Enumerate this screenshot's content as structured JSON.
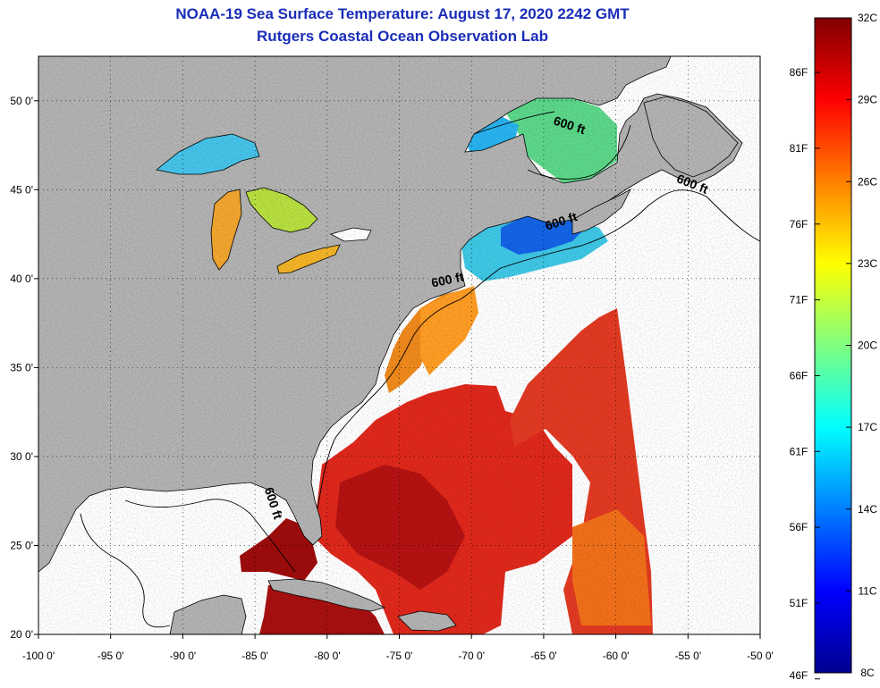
{
  "title": {
    "line1": "NOAA-19 Sea Surface Temperature:  August 17, 2020 2242 GMT",
    "line2": "Rutgers Coastal Ocean Observation Lab"
  },
  "map": {
    "lon_range": [
      -100,
      -50
    ],
    "lat_range": [
      20,
      52.5
    ],
    "x_ticks": [
      {
        "value": -100,
        "label": "-100 0'"
      },
      {
        "value": -95,
        "label": "-95 0'"
      },
      {
        "value": -90,
        "label": "-90 0'"
      },
      {
        "value": -85,
        "label": "-85 0'"
      },
      {
        "value": -80,
        "label": "-80 0'"
      },
      {
        "value": -75,
        "label": "-75 0'"
      },
      {
        "value": -70,
        "label": "-70 0'"
      },
      {
        "value": -65,
        "label": "-65 0'"
      },
      {
        "value": -60,
        "label": "-60 0'"
      },
      {
        "value": -55,
        "label": "-55 0'"
      },
      {
        "value": -50,
        "label": "-50 0'"
      }
    ],
    "y_ticks": [
      {
        "value": 20,
        "label": "20 0'"
      },
      {
        "value": 25,
        "label": "25 0'"
      },
      {
        "value": 30,
        "label": "30 0'"
      },
      {
        "value": 35,
        "label": "35 0'"
      },
      {
        "value": 40,
        "label": "40 0'"
      },
      {
        "value": 45,
        "label": "45 0'"
      },
      {
        "value": 50,
        "label": "50 0'"
      }
    ],
    "contour_labels": [
      {
        "text": "600 ft",
        "lon": -63.3,
        "lat": 48.4,
        "angle": 18
      },
      {
        "text": "600 ft",
        "lon": -54.8,
        "lat": 45.1,
        "angle": 22
      },
      {
        "text": "600 ft",
        "lon": -63.7,
        "lat": 43.0,
        "angle": -18
      },
      {
        "text": "600 ft",
        "lon": -71.6,
        "lat": 39.7,
        "angle": -12
      },
      {
        "text": "600 ft",
        "lon": -84.0,
        "lat": 27.3,
        "angle": 72
      }
    ],
    "land_color": "#b3b3b3",
    "nodata_color": "#ffffff"
  },
  "colorbar": {
    "celsius_labels": [
      "32C",
      "29C",
      "26C",
      "23C",
      "20C",
      "17C",
      "14C",
      "11C",
      "8C"
    ],
    "fahrenheit_labels": [
      "86F",
      "81F",
      "76F",
      "71F",
      "66F",
      "61F",
      "56F",
      "51F",
      "46F"
    ],
    "fahrenheit_values": [
      86,
      81,
      76,
      71,
      66,
      61,
      56,
      51,
      46
    ],
    "range_c": [
      8,
      32
    ],
    "colormap": "jet"
  }
}
